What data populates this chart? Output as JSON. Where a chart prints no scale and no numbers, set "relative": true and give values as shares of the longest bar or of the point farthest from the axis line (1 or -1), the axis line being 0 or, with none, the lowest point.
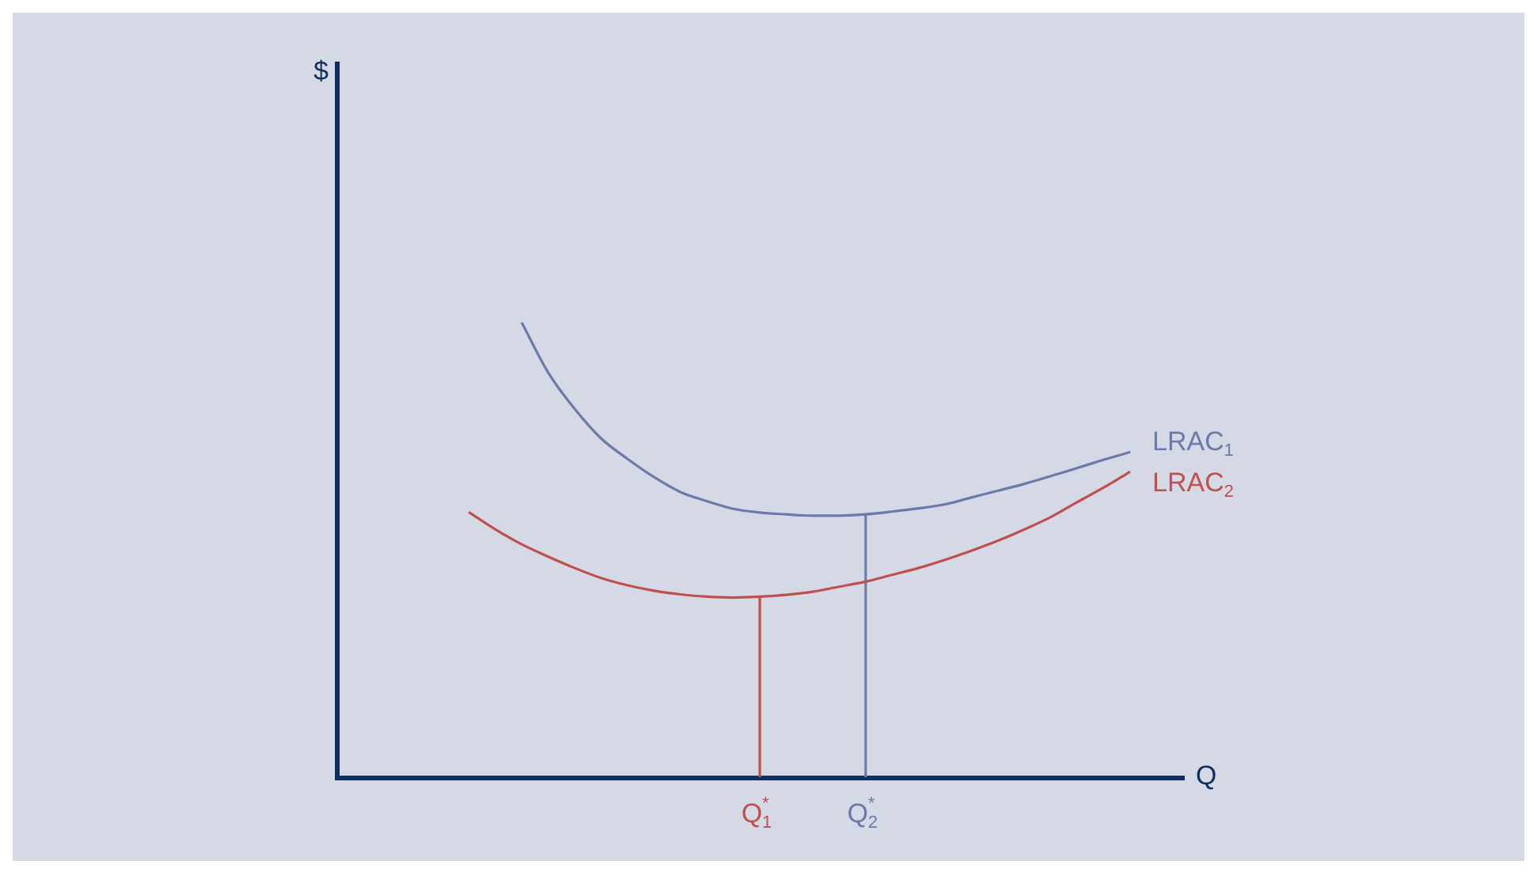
{
  "chart_data": {
    "type": "line",
    "relative": true,
    "xlabel": "Q",
    "annotations": [
      "$"
    ],
    "legend": false,
    "grid": false,
    "tick_labels": "x",
    "marker": "none",
    "categories": [
      null,
      null,
      null,
      null,
      null,
      null,
      null,
      null,
      null,
      null,
      null,
      null,
      null,
      null,
      null,
      null,
      "Q$_{1}$$^{*}$",
      null,
      null,
      null,
      "Q$_{2}$$^{*}$",
      null,
      null,
      null,
      null,
      null,
      null,
      null,
      null,
      null,
      null,
      null,
      null
    ],
    "series": [
      {
        "name": "LRAC$_{1}$",
        "color": "#6b7aa8",
        "values": [
          null,
          null,
          null,
          null,
          null,
          null,
          null,
          1.0,
          0.89,
          0.81,
          0.745,
          0.7,
          0.66,
          0.627,
          0.607,
          0.59,
          0.582,
          0.578,
          0.575,
          0.575,
          0.578,
          0.584,
          0.591,
          0.6,
          0.615,
          0.63,
          0.645,
          0.662,
          0.68,
          0.698,
          0.715,
          null,
          null
        ]
      },
      {
        "name": "LRAC$_{2}$",
        "color": "#c0504d",
        "values": [
          null,
          null,
          null,
          null,
          null,
          0.583,
          0.545,
          0.512,
          0.485,
          0.46,
          0.438,
          0.422,
          0.41,
          0.402,
          0.397,
          0.395,
          0.397,
          0.401,
          0.408,
          0.419,
          0.43,
          0.445,
          0.46,
          0.478,
          0.498,
          0.52,
          0.545,
          0.572,
          0.605,
          0.637,
          0.672,
          null,
          null
        ]
      }
    ],
    "ref_lines": [
      {
        "axis": "x",
        "value": "Q$_{1}$$^{*}$",
        "color": "#c0504d"
      },
      {
        "axis": "x",
        "value": "Q$_{2}$$^{*}$",
        "color": "#6b7aa8"
      }
    ]
  }
}
